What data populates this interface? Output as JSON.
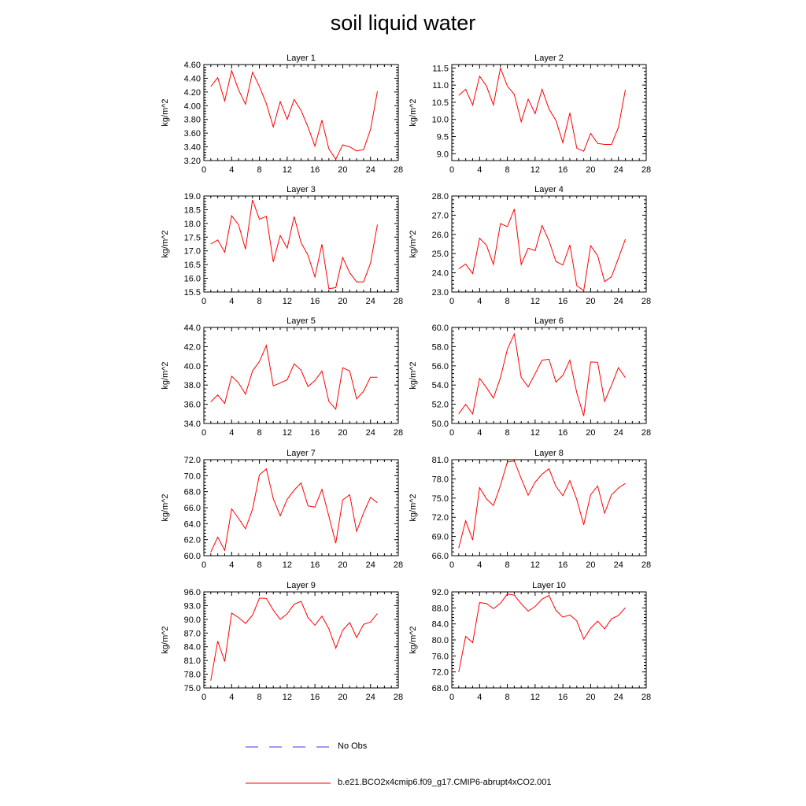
{
  "title": "soil liquid water",
  "legend": {
    "obs_label": "No Obs",
    "obs_color": "#3b3bd8",
    "model_label": "b.e21.BCO2x4cmip6.f09_g17.CMIP6-abrupt4xCO2.001",
    "model_color": "#ff0000"
  },
  "chart_data": [
    {
      "type": "line",
      "title": "Layer 1",
      "xlabel": "",
      "ylabel": "kg/m^2",
      "xlim": [
        0,
        28
      ],
      "xticks": [
        "0",
        "4",
        "8",
        "12",
        "16",
        "20",
        "24",
        "28"
      ],
      "ylim": [
        3.2,
        4.6
      ],
      "yticks": [
        "3.20",
        "3.40",
        "3.60",
        "3.80",
        "4.00",
        "4.20",
        "4.40",
        "4.60"
      ],
      "series": [
        {
          "color": "#ff0000",
          "x": [
            1,
            2,
            3,
            4,
            5,
            6,
            7,
            8,
            9,
            10,
            11,
            12,
            13,
            14,
            15,
            16,
            17,
            18,
            19,
            20,
            21,
            22,
            23,
            24,
            25
          ],
          "values": [
            4.28,
            4.41,
            4.07,
            4.51,
            4.23,
            4.02,
            4.49,
            4.28,
            4.03,
            3.69,
            4.06,
            3.8,
            4.09,
            3.93,
            3.69,
            3.41,
            3.79,
            3.37,
            3.22,
            3.43,
            3.4,
            3.34,
            3.36,
            3.65,
            4.21
          ]
        }
      ]
    },
    {
      "type": "line",
      "title": "Layer 2",
      "xlabel": "",
      "ylabel": "kg/m^2",
      "xlim": [
        0,
        28
      ],
      "xticks": [
        "0",
        "4",
        "8",
        "12",
        "16",
        "20",
        "24",
        "28"
      ],
      "ylim": [
        8.8,
        11.6
      ],
      "yticks": [
        "9.0",
        "9.5",
        "10.0",
        "10.5",
        "11.0",
        "11.5"
      ],
      "series": [
        {
          "color": "#ff0000",
          "x": [
            1,
            2,
            3,
            4,
            5,
            6,
            7,
            8,
            9,
            10,
            11,
            12,
            13,
            14,
            15,
            16,
            17,
            18,
            19,
            20,
            21,
            22,
            23,
            24,
            25
          ],
          "values": [
            10.7,
            10.88,
            10.42,
            11.26,
            10.97,
            10.42,
            11.5,
            10.97,
            10.73,
            9.93,
            10.59,
            10.17,
            10.88,
            10.3,
            9.97,
            9.32,
            10.19,
            9.16,
            9.07,
            9.59,
            9.3,
            9.27,
            9.27,
            9.77,
            10.86
          ]
        }
      ]
    },
    {
      "type": "line",
      "title": "Layer 3",
      "xlabel": "",
      "ylabel": "kg/m^2",
      "xlim": [
        0,
        28
      ],
      "xticks": [
        "0",
        "4",
        "8",
        "12",
        "16",
        "20",
        "24",
        "28"
      ],
      "ylim": [
        15.5,
        19.0
      ],
      "yticks": [
        "15.5",
        "16.0",
        "16.5",
        "17.0",
        "17.5",
        "18.0",
        "18.5",
        "19.0"
      ],
      "series": [
        {
          "color": "#ff0000",
          "x": [
            1,
            2,
            3,
            4,
            5,
            6,
            7,
            8,
            9,
            10,
            11,
            12,
            13,
            14,
            15,
            16,
            17,
            18,
            19,
            20,
            21,
            22,
            23,
            24,
            25
          ],
          "values": [
            17.25,
            17.4,
            16.95,
            18.28,
            17.95,
            17.06,
            18.86,
            18.15,
            18.26,
            16.6,
            17.56,
            17.1,
            18.25,
            17.3,
            16.84,
            16.05,
            17.24,
            15.62,
            15.66,
            16.76,
            16.2,
            15.87,
            15.87,
            16.55,
            17.96
          ]
        }
      ]
    },
    {
      "type": "line",
      "title": "Layer 4",
      "xlabel": "",
      "ylabel": "kg/m^2",
      "xlim": [
        0,
        28
      ],
      "xticks": [
        "0",
        "4",
        "8",
        "12",
        "16",
        "20",
        "24",
        "28"
      ],
      "ylim": [
        23.0,
        28.0
      ],
      "yticks": [
        "23.0",
        "24.0",
        "25.0",
        "26.0",
        "27.0",
        "28.0"
      ],
      "series": [
        {
          "color": "#ff0000",
          "x": [
            1,
            2,
            3,
            4,
            5,
            6,
            7,
            8,
            9,
            10,
            11,
            12,
            13,
            14,
            15,
            16,
            17,
            18,
            19,
            20,
            21,
            22,
            23,
            24,
            25
          ],
          "values": [
            24.2,
            24.46,
            23.96,
            25.8,
            25.43,
            24.43,
            26.56,
            26.4,
            27.32,
            24.43,
            25.28,
            25.15,
            26.46,
            25.67,
            24.59,
            24.4,
            25.45,
            23.33,
            23.06,
            25.41,
            24.89,
            23.54,
            23.8,
            24.76,
            25.75
          ]
        }
      ]
    },
    {
      "type": "line",
      "title": "Layer 5",
      "xlabel": "",
      "ylabel": "kg/m^2",
      "xlim": [
        0,
        28
      ],
      "xticks": [
        "0",
        "4",
        "8",
        "12",
        "16",
        "20",
        "24",
        "28"
      ],
      "ylim": [
        34.0,
        44.0
      ],
      "yticks": [
        "34.0",
        "36.0",
        "38.0",
        "40.0",
        "42.0",
        "44.0"
      ],
      "series": [
        {
          "color": "#ff0000",
          "x": [
            1,
            2,
            3,
            4,
            5,
            6,
            7,
            8,
            9,
            10,
            11,
            12,
            13,
            14,
            15,
            16,
            17,
            18,
            19,
            20,
            21,
            22,
            23,
            24,
            25
          ],
          "values": [
            36.25,
            36.97,
            36.09,
            38.93,
            38.23,
            37.05,
            39.46,
            40.45,
            42.12,
            37.92,
            38.21,
            38.55,
            40.21,
            39.55,
            37.85,
            38.47,
            39.46,
            36.3,
            35.48,
            39.8,
            39.46,
            36.56,
            37.35,
            38.81,
            38.81
          ]
        }
      ]
    },
    {
      "type": "line",
      "title": "Layer 6",
      "xlabel": "",
      "ylabel": "kg/m^2",
      "xlim": [
        0,
        28
      ],
      "xticks": [
        "0",
        "4",
        "8",
        "12",
        "16",
        "20",
        "24",
        "28"
      ],
      "ylim": [
        50.0,
        60.0
      ],
      "yticks": [
        "50.0",
        "52.0",
        "54.0",
        "56.0",
        "58.0",
        "60.0"
      ],
      "series": [
        {
          "color": "#ff0000",
          "x": [
            1,
            2,
            3,
            4,
            5,
            6,
            7,
            8,
            9,
            10,
            11,
            12,
            13,
            14,
            15,
            16,
            17,
            18,
            19,
            20,
            21,
            22,
            23,
            24,
            25
          ],
          "values": [
            51.0,
            51.99,
            50.99,
            54.7,
            53.72,
            52.65,
            54.76,
            57.72,
            59.32,
            54.8,
            53.8,
            55.19,
            56.59,
            56.69,
            54.31,
            55.01,
            56.59,
            53.2,
            50.77,
            56.4,
            56.37,
            52.3,
            53.97,
            55.81,
            54.76
          ]
        }
      ]
    },
    {
      "type": "line",
      "title": "Layer 7",
      "xlabel": "",
      "ylabel": "kg/m^2",
      "xlim": [
        0,
        28
      ],
      "xticks": [
        "0",
        "4",
        "8",
        "12",
        "16",
        "20",
        "24",
        "28"
      ],
      "ylim": [
        60.0,
        72.0
      ],
      "yticks": [
        "60.0",
        "62.0",
        "64.0",
        "66.0",
        "68.0",
        "70.0",
        "72.0"
      ],
      "series": [
        {
          "color": "#ff0000",
          "x": [
            1,
            2,
            3,
            4,
            5,
            6,
            7,
            8,
            9,
            10,
            11,
            12,
            13,
            14,
            15,
            16,
            17,
            18,
            19,
            20,
            21,
            22,
            23,
            24,
            25
          ],
          "values": [
            60.44,
            62.32,
            60.66,
            65.85,
            64.66,
            63.35,
            65.79,
            70.1,
            70.84,
            67.12,
            64.99,
            67.04,
            68.19,
            69.09,
            66.23,
            66.07,
            68.29,
            64.94,
            61.55,
            66.97,
            67.62,
            63.03,
            65.34,
            67.29,
            66.62
          ]
        }
      ]
    },
    {
      "type": "line",
      "title": "Layer 8",
      "xlabel": "",
      "ylabel": "kg/m^2",
      "xlim": [
        0,
        28
      ],
      "xticks": [
        "0",
        "4",
        "8",
        "12",
        "16",
        "20",
        "24",
        "28"
      ],
      "ylim": [
        66.0,
        81.0
      ],
      "yticks": [
        "66.0",
        "69.0",
        "72.0",
        "75.0",
        "78.0",
        "81.0"
      ],
      "series": [
        {
          "color": "#ff0000",
          "x": [
            1,
            2,
            3,
            4,
            5,
            6,
            7,
            8,
            9,
            10,
            11,
            12,
            13,
            14,
            15,
            16,
            17,
            18,
            19,
            20,
            21,
            22,
            23,
            24,
            25
          ],
          "values": [
            67.2,
            71.46,
            68.45,
            76.64,
            74.87,
            73.84,
            76.95,
            80.64,
            80.81,
            78.04,
            75.44,
            77.5,
            78.74,
            79.57,
            76.83,
            75.37,
            77.72,
            74.77,
            70.83,
            75.52,
            76.91,
            72.64,
            75.52,
            76.57,
            77.29
          ]
        }
      ]
    },
    {
      "type": "line",
      "title": "Layer 9",
      "xlabel": "",
      "ylabel": "kg/m^2",
      "xlim": [
        0,
        28
      ],
      "xticks": [
        "0",
        "4",
        "8",
        "12",
        "16",
        "20",
        "24",
        "28"
      ],
      "ylim": [
        75.0,
        96.0
      ],
      "yticks": [
        "75.0",
        "78.0",
        "81.0",
        "84.0",
        "87.0",
        "90.0",
        "93.0",
        "96.0"
      ],
      "series": [
        {
          "color": "#ff0000",
          "x": [
            1,
            2,
            3,
            4,
            5,
            6,
            7,
            8,
            9,
            10,
            11,
            12,
            13,
            14,
            15,
            16,
            17,
            18,
            19,
            20,
            21,
            22,
            23,
            24,
            25
          ],
          "values": [
            76.6,
            85.26,
            80.76,
            91.37,
            90.39,
            89.11,
            90.9,
            94.64,
            94.55,
            92.03,
            89.99,
            91.21,
            93.3,
            93.93,
            90.38,
            88.71,
            90.7,
            87.96,
            83.7,
            87.63,
            89.3,
            86.01,
            88.89,
            89.41,
            91.29
          ]
        }
      ]
    },
    {
      "type": "line",
      "title": "Layer 10",
      "xlabel": "",
      "ylabel": "kg/m^2",
      "xlim": [
        0,
        28
      ],
      "xticks": [
        "0",
        "4",
        "8",
        "12",
        "16",
        "20",
        "24",
        "28"
      ],
      "ylim": [
        68.0,
        92.0
      ],
      "yticks": [
        "68.0",
        "72.0",
        "76.0",
        "80.0",
        "84.0",
        "88.0",
        "92.0"
      ],
      "series": [
        {
          "color": "#ff0000",
          "x": [
            1,
            2,
            3,
            4,
            5,
            6,
            7,
            8,
            9,
            10,
            11,
            12,
            13,
            14,
            15,
            16,
            17,
            18,
            19,
            20,
            21,
            22,
            23,
            24,
            25
          ],
          "values": [
            71.97,
            80.88,
            79.31,
            89.32,
            89.11,
            87.81,
            89.17,
            91.47,
            91.19,
            89.02,
            87.2,
            88.37,
            90.19,
            91.11,
            87.39,
            85.68,
            86.26,
            84.75,
            80.19,
            82.91,
            84.7,
            82.78,
            85.25,
            86.1,
            88.05
          ]
        }
      ]
    }
  ]
}
